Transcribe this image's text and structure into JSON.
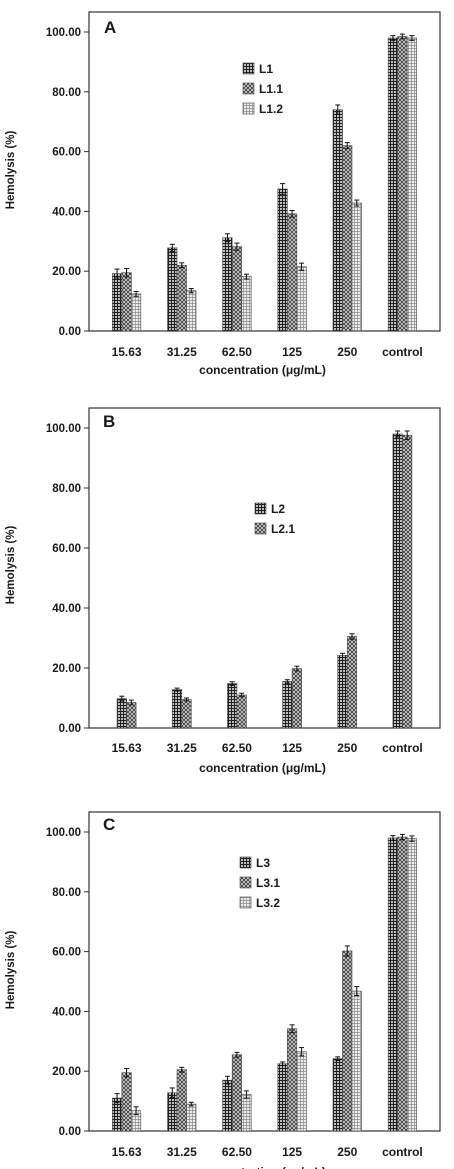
{
  "chart_data": [
    {
      "type": "bar",
      "panel_label": "A",
      "categories": [
        "15.63",
        "31.25",
        "62.50",
        "125",
        "250",
        "control"
      ],
      "xlabel": "concentration (μg/mL)",
      "ylabel": "Hemolysis (%)",
      "ylim": [
        0,
        100
      ],
      "yticks": [
        "0.00",
        "20.00",
        "40.00",
        "60.00",
        "80.00",
        "100.00"
      ],
      "legend_position": "center",
      "series": [
        {
          "name": "L1",
          "values": [
            19.2,
            27.8,
            31.2,
            47.5,
            74.0,
            98.0
          ],
          "errors": [
            1.5,
            1.2,
            1.3,
            1.8,
            1.6,
            0.8
          ]
        },
        {
          "name": "L1.1",
          "values": [
            19.5,
            22.0,
            28.2,
            39.2,
            62.0,
            98.5
          ],
          "errors": [
            1.4,
            0.8,
            1.2,
            1.1,
            1.0,
            0.8
          ]
        },
        {
          "name": "L1.2",
          "values": [
            12.4,
            13.5,
            18.2,
            21.5,
            42.8,
            98.0
          ],
          "errors": [
            0.8,
            0.7,
            0.8,
            1.2,
            1.0,
            0.8
          ]
        }
      ]
    },
    {
      "type": "bar",
      "panel_label": "B",
      "categories": [
        "15.63",
        "31.25",
        "62.50",
        "125",
        "250",
        "control"
      ],
      "xlabel": "concentration (μg/mL)",
      "ylabel": "Hemolysis (%)",
      "ylim": [
        0,
        100
      ],
      "yticks": [
        "0.00",
        "20.00",
        "40.00",
        "60.00",
        "80.00",
        "100.00"
      ],
      "legend_position": "center",
      "series": [
        {
          "name": "L2",
          "values": [
            9.8,
            12.8,
            14.8,
            15.5,
            24.2,
            98.0
          ],
          "errors": [
            0.8,
            0.5,
            0.6,
            0.6,
            0.7,
            1.0
          ]
        },
        {
          "name": "L2.1",
          "values": [
            8.5,
            9.5,
            11.0,
            19.8,
            30.5,
            97.6
          ],
          "errors": [
            0.8,
            0.5,
            0.6,
            0.8,
            0.9,
            1.4
          ]
        }
      ]
    },
    {
      "type": "bar",
      "panel_label": "C",
      "categories": [
        "15.63",
        "31.25",
        "62.50",
        "125",
        "250",
        "control"
      ],
      "xlabel": "concentration (μg/mL)",
      "ylabel": "Hemolysis (%)",
      "ylim": [
        0,
        100
      ],
      "yticks": [
        "0.00",
        "20.00",
        "40.00",
        "60.00",
        "80.00",
        "100.00"
      ],
      "legend_position": "center",
      "series": [
        {
          "name": "L3",
          "values": [
            11.0,
            12.8,
            17.0,
            22.5,
            24.2,
            98.0
          ],
          "errors": [
            1.5,
            1.6,
            1.3,
            0.6,
            0.6,
            0.8
          ]
        },
        {
          "name": "L3.1",
          "values": [
            19.5,
            20.5,
            25.5,
            34.2,
            60.2,
            98.3
          ],
          "errors": [
            1.4,
            0.8,
            0.8,
            1.3,
            1.7,
            0.9
          ]
        },
        {
          "name": "L3.2",
          "values": [
            6.8,
            9.0,
            12.2,
            26.5,
            46.8,
            97.8
          ],
          "errors": [
            1.3,
            0.6,
            1.2,
            1.4,
            1.5,
            0.9
          ]
        }
      ]
    }
  ]
}
